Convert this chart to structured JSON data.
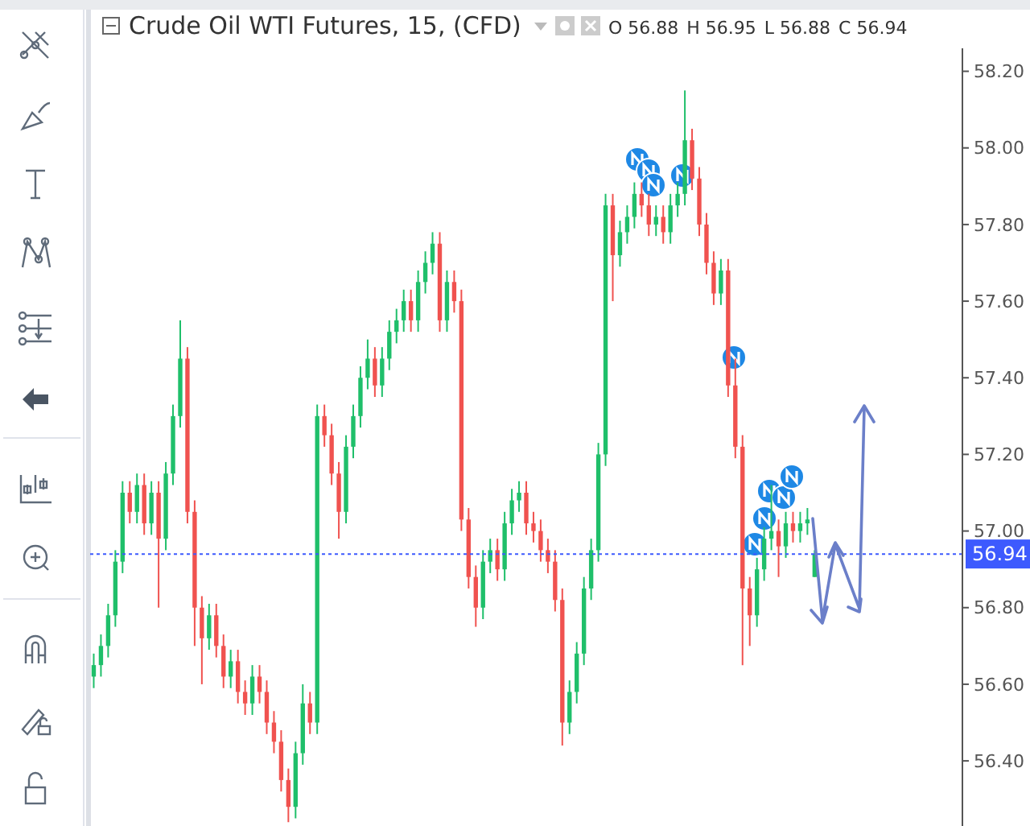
{
  "chart_data": {
    "type": "candlestick",
    "title": "Crude Oil WTI Futures, 15, (CFD)",
    "annotations": [
      "O 56.88",
      "H 56.95",
      "L 56.88",
      "C 56.94"
    ],
    "categories": [
      null,
      null,
      null,
      null,
      null,
      null,
      null,
      null,
      null,
      null,
      null,
      null,
      null,
      null,
      null,
      null,
      null,
      null,
      null,
      null,
      null,
      null,
      null,
      null,
      null,
      null,
      null,
      null,
      null,
      null,
      null,
      null,
      null,
      null,
      null,
      null,
      null,
      null,
      null,
      null,
      null,
      null,
      null,
      null,
      null,
      null,
      null,
      null,
      null,
      null,
      null,
      null,
      null,
      null,
      null,
      null,
      null,
      null,
      null,
      null,
      null,
      null,
      null,
      null,
      null,
      null,
      null,
      null,
      null,
      null,
      null,
      null,
      null,
      null,
      null,
      null,
      null,
      null,
      null,
      null,
      null,
      null,
      null,
      null,
      null,
      null,
      null,
      null,
      null,
      null,
      null,
      null,
      null,
      null,
      null,
      null,
      null,
      null,
      null,
      null,
      null,
      null,
      null,
      null,
      null,
      null,
      null,
      null,
      null,
      null,
      null,
      null,
      null,
      null,
      null,
      null,
      null,
      null,
      null,
      null,
      null
    ],
    "ohlc": [
      [
        56.62,
        56.68,
        56.59,
        56.65
      ],
      [
        56.65,
        56.73,
        56.62,
        56.7
      ],
      [
        56.7,
        56.81,
        56.67,
        56.78
      ],
      [
        56.78,
        56.95,
        56.75,
        56.92
      ],
      [
        56.92,
        57.13,
        56.89,
        57.1
      ],
      [
        57.1,
        57.13,
        57.02,
        57.05
      ],
      [
        57.05,
        57.15,
        57.02,
        57.12
      ],
      [
        57.12,
        57.15,
        56.99,
        57.02
      ],
      [
        57.02,
        57.13,
        56.99,
        57.1
      ],
      [
        57.1,
        57.13,
        56.8,
        56.98
      ],
      [
        56.98,
        57.18,
        56.95,
        57.15
      ],
      [
        57.15,
        57.33,
        57.12,
        57.3
      ],
      [
        57.3,
        57.55,
        57.27,
        57.45
      ],
      [
        57.45,
        57.48,
        57.02,
        57.05
      ],
      [
        57.05,
        57.08,
        56.7,
        56.8
      ],
      [
        56.8,
        56.83,
        56.6,
        56.72
      ],
      [
        56.72,
        56.81,
        56.69,
        56.78
      ],
      [
        56.78,
        56.81,
        56.67,
        56.7
      ],
      [
        56.7,
        56.73,
        56.59,
        56.62
      ],
      [
        56.62,
        56.69,
        56.59,
        56.66
      ],
      [
        56.66,
        56.69,
        56.55,
        56.58
      ],
      [
        56.58,
        56.61,
        56.52,
        56.55
      ],
      [
        56.55,
        56.65,
        56.52,
        56.62
      ],
      [
        56.62,
        56.65,
        56.55,
        56.58
      ],
      [
        56.58,
        56.61,
        56.47,
        56.5
      ],
      [
        56.5,
        56.53,
        56.42,
        56.45
      ],
      [
        56.45,
        56.48,
        56.32,
        56.35
      ],
      [
        56.35,
        56.38,
        56.24,
        56.28
      ],
      [
        56.28,
        56.45,
        56.25,
        56.42
      ],
      [
        56.42,
        56.6,
        56.39,
        56.55
      ],
      [
        56.55,
        56.58,
        56.47,
        56.5
      ],
      [
        56.5,
        57.33,
        56.47,
        57.3
      ],
      [
        57.3,
        57.33,
        57.22,
        57.25
      ],
      [
        57.25,
        57.28,
        57.12,
        57.15
      ],
      [
        57.15,
        57.18,
        56.98,
        57.05
      ],
      [
        57.05,
        57.25,
        57.02,
        57.22
      ],
      [
        57.22,
        57.33,
        57.19,
        57.3
      ],
      [
        57.3,
        57.43,
        57.27,
        57.4
      ],
      [
        57.4,
        57.5,
        57.37,
        57.45
      ],
      [
        57.45,
        57.48,
        57.35,
        57.38
      ],
      [
        57.38,
        57.48,
        57.35,
        57.45
      ],
      [
        57.45,
        57.55,
        57.42,
        57.52
      ],
      [
        57.52,
        57.58,
        57.49,
        57.55
      ],
      [
        57.55,
        57.63,
        57.52,
        57.6
      ],
      [
        57.6,
        57.63,
        57.52,
        57.55
      ],
      [
        57.55,
        57.68,
        57.52,
        57.65
      ],
      [
        57.65,
        57.73,
        57.62,
        57.7
      ],
      [
        57.7,
        57.78,
        57.67,
        57.75
      ],
      [
        57.75,
        57.78,
        57.52,
        57.55
      ],
      [
        57.55,
        57.68,
        57.52,
        57.65
      ],
      [
        57.65,
        57.68,
        57.57,
        57.6
      ],
      [
        57.6,
        57.63,
        57.0,
        57.03
      ],
      [
        57.03,
        57.06,
        56.85,
        56.88
      ],
      [
        56.88,
        56.91,
        56.75,
        56.8
      ],
      [
        56.8,
        56.95,
        56.77,
        56.92
      ],
      [
        56.92,
        56.98,
        56.89,
        56.95
      ],
      [
        56.95,
        56.98,
        56.87,
        56.9
      ],
      [
        56.9,
        57.05,
        56.87,
        57.02
      ],
      [
        57.02,
        57.11,
        56.99,
        57.08
      ],
      [
        57.08,
        57.13,
        57.05,
        57.1
      ],
      [
        57.1,
        57.13,
        56.99,
        57.02
      ],
      [
        57.02,
        57.05,
        56.97,
        57.0
      ],
      [
        57.0,
        57.03,
        56.92,
        56.95
      ],
      [
        56.95,
        56.98,
        56.89,
        56.92
      ],
      [
        56.92,
        56.95,
        56.79,
        56.82
      ],
      [
        56.82,
        56.85,
        56.44,
        56.5
      ],
      [
        56.5,
        56.61,
        56.47,
        56.58
      ],
      [
        56.58,
        56.71,
        56.55,
        56.68
      ],
      [
        56.68,
        56.88,
        56.65,
        56.85
      ],
      [
        56.85,
        56.98,
        56.82,
        56.95
      ],
      [
        56.95,
        57.23,
        56.92,
        57.2
      ],
      [
        57.2,
        57.88,
        57.17,
        57.85
      ],
      [
        57.85,
        57.88,
        57.6,
        57.72
      ],
      [
        57.72,
        57.81,
        57.69,
        57.78
      ],
      [
        57.78,
        57.85,
        57.75,
        57.82
      ],
      [
        57.82,
        57.91,
        57.79,
        57.88
      ],
      [
        57.88,
        57.91,
        57.82,
        57.85
      ],
      [
        57.85,
        57.88,
        57.77,
        57.8
      ],
      [
        57.8,
        57.85,
        57.77,
        57.82
      ],
      [
        57.82,
        57.85,
        57.75,
        57.78
      ],
      [
        57.78,
        57.88,
        57.75,
        57.85
      ],
      [
        57.85,
        57.91,
        57.82,
        57.88
      ],
      [
        57.88,
        58.15,
        57.85,
        58.02
      ],
      [
        58.02,
        58.05,
        57.89,
        57.92
      ],
      [
        57.92,
        57.95,
        57.77,
        57.8
      ],
      [
        57.8,
        57.83,
        57.67,
        57.7
      ],
      [
        57.7,
        57.73,
        57.59,
        57.62
      ],
      [
        57.62,
        57.71,
        57.59,
        57.68
      ],
      [
        57.68,
        57.71,
        57.35,
        57.38
      ],
      [
        57.38,
        57.45,
        57.19,
        57.22
      ],
      [
        57.22,
        57.25,
        56.65,
        56.85
      ],
      [
        56.85,
        56.88,
        56.7,
        56.78
      ],
      [
        56.78,
        56.93,
        56.75,
        56.9
      ],
      [
        56.9,
        57.01,
        56.87,
        56.98
      ],
      [
        56.98,
        57.12,
        56.95,
        57.0
      ],
      [
        57.0,
        57.03,
        56.88,
        56.96
      ],
      [
        56.96,
        57.05,
        56.93,
        57.02
      ],
      [
        57.02,
        57.05,
        56.97,
        57.0
      ],
      [
        57.0,
        57.05,
        56.97,
        57.02
      ],
      [
        57.02,
        57.06,
        56.99,
        57.03
      ],
      [
        56.88,
        56.95,
        56.88,
        56.94
      ],
      null,
      null,
      null,
      null,
      null,
      null,
      null,
      null,
      null,
      null,
      null,
      null,
      null,
      null,
      null,
      null,
      null,
      null,
      null,
      null
    ],
    "ylim": [
      56.23,
      58.26
    ],
    "yticks": [
      {
        "value": 56.4,
        "label": "56.40"
      },
      {
        "value": 56.6,
        "label": "56.60"
      },
      {
        "value": 56.8,
        "label": "56.80"
      },
      {
        "value": 57.0,
        "label": "57.00"
      },
      {
        "value": 57.2,
        "label": "57.20"
      },
      {
        "value": 57.4,
        "label": "57.40"
      },
      {
        "value": 57.6,
        "label": "57.60"
      },
      {
        "value": 57.8,
        "label": "57.80"
      },
      {
        "value": 58.0,
        "label": "58.00"
      },
      {
        "value": 58.2,
        "label": "58.20"
      }
    ],
    "tick_labels": "y",
    "grid": false,
    "ref_lines": [
      {
        "axis": "y",
        "value": 56.94,
        "label": "56.94",
        "color": "#3d5afe",
        "line_style": "dotted"
      }
    ]
  }
}
